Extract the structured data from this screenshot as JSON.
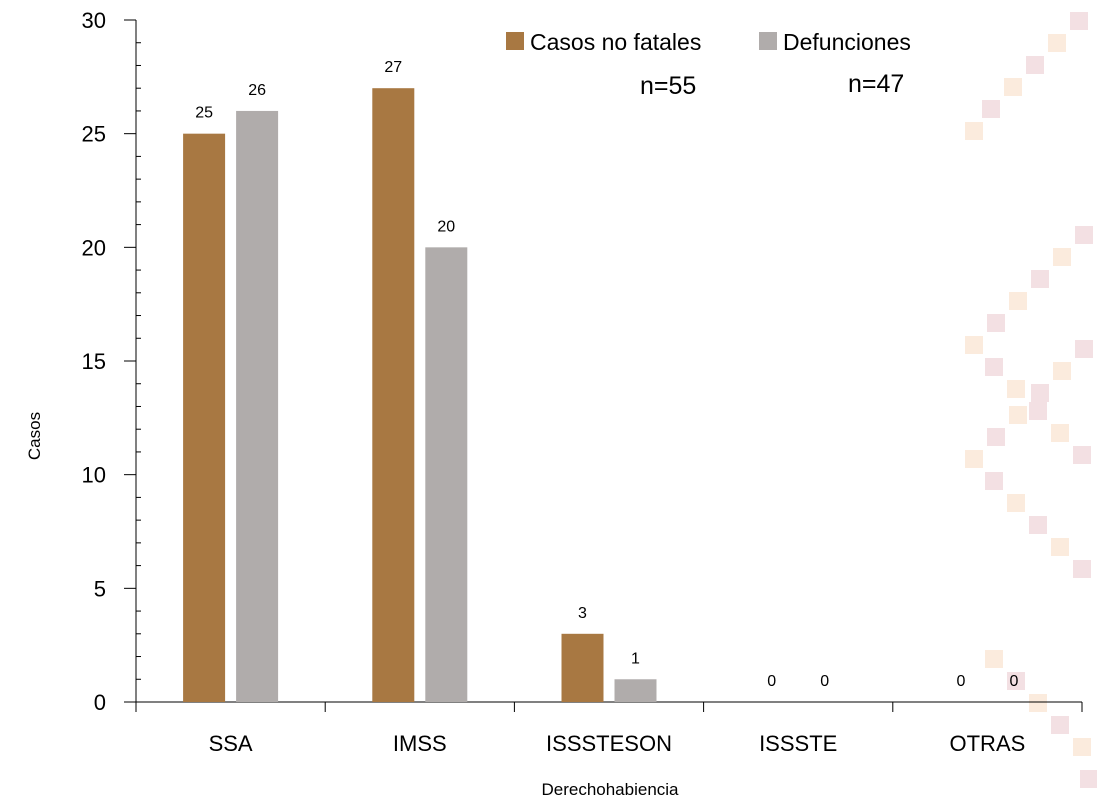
{
  "chart_data": {
    "type": "bar",
    "categories": [
      "SSA",
      "IMSS",
      "ISSSTESON",
      "ISSSTE",
      "OTRAS"
    ],
    "series": [
      {
        "name": "Casos no fatales",
        "values": [
          25,
          27,
          3,
          0,
          0
        ],
        "color": "#A87842"
      },
      {
        "name": "Defunciones",
        "values": [
          26,
          20,
          1,
          0,
          0
        ],
        "color": "#B0ACAB"
      }
    ],
    "xlabel": "Derechohabiencia",
    "ylabel": "Casos",
    "ylim": [
      0,
      30
    ],
    "yticks": [
      0,
      5,
      10,
      15,
      20,
      25,
      30
    ],
    "legend_position": "top-right",
    "annotations": [
      "n=55",
      "n=47"
    ],
    "grid": false,
    "data_labels": true
  },
  "watermark": {
    "colors": [
      "#F3E0E3",
      "#FBEBDD"
    ]
  }
}
